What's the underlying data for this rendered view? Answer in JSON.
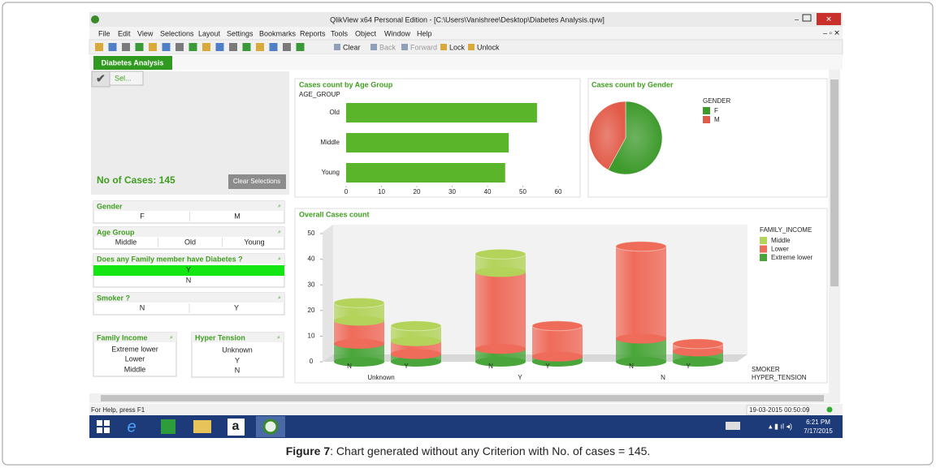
{
  "window": {
    "title": "QlikView x64 Personal Edition - [C:\\Users\\Vanishree\\Desktop\\Diabetes Analysis.qvw]"
  },
  "menu": [
    "File",
    "Edit",
    "View",
    "Selections",
    "Layout",
    "Settings",
    "Bookmarks",
    "Reports",
    "Tools",
    "Object",
    "Window",
    "Help"
  ],
  "toolbar": [
    "Clear",
    "Back",
    "Forward",
    "Lock",
    "Unlock"
  ],
  "tab": "Diabetes Analysis",
  "current_selections": "Sel...",
  "cases_label": "No of Cases: 145",
  "clear_button": "Clear Selections",
  "listboxes": [
    {
      "title": "Gender",
      "items": [
        "F",
        "M"
      ]
    },
    {
      "title": "Age Group",
      "items": [
        "Middle",
        "Old",
        "Young"
      ]
    },
    {
      "title": "Does any Family member have Diabetes ?",
      "items": [
        "Y",
        "N"
      ],
      "selected_item": 0
    },
    {
      "title": "Smoker ?",
      "items": [
        "N",
        "Y"
      ]
    },
    {
      "title": "Family Income",
      "items": [
        "Extreme lower",
        "Lower",
        "Middle"
      ]
    },
    {
      "title": "Hyper Tension",
      "items": [
        "Unknown",
        "Y",
        "N"
      ]
    }
  ],
  "age_chart": {
    "type": "bar",
    "orientation": "horizontal",
    "title": "Cases count by Age Group",
    "dimension_label": "AGE_GROUP",
    "categories": [
      "Old",
      "Middle",
      "Young"
    ],
    "values": [
      54,
      46,
      45
    ],
    "color": "#5ab52a",
    "xlim": [
      0,
      60
    ],
    "xticks": [
      0,
      10,
      20,
      30,
      40,
      50,
      60
    ]
  },
  "gender_chart": {
    "type": "pie",
    "title": "Cases count by Gender",
    "legend_title": "GENDER",
    "categories": [
      "F",
      "M"
    ],
    "values": [
      84,
      61
    ],
    "colors": [
      "#3d9a2b",
      "#e25a48"
    ]
  },
  "overall_chart": {
    "type": "bar",
    "stacked": true,
    "title": "Overall Cases count",
    "categories": [
      "N",
      "Y",
      "N",
      "Y",
      "N",
      "Y"
    ],
    "groups": [
      "Unknown",
      "Y",
      "N"
    ],
    "x_label": "SMOKER",
    "x_group_label": "HYPER_TENSION",
    "legend_title": "FAMILY_INCOME",
    "series": [
      {
        "name": "Extreme lower",
        "color": "#4aa63a",
        "values": [
          7,
          3,
          5,
          2,
          9,
          4
        ]
      },
      {
        "name": "Lower",
        "color": "#ef6b5a",
        "values": [
          9,
          5,
          30,
          12,
          36,
          3
        ]
      },
      {
        "name": "Middle",
        "color": "#b3d35a",
        "values": [
          7,
          6,
          7,
          0,
          0,
          0
        ]
      }
    ],
    "ylim": [
      0,
      50
    ],
    "yticks": [
      0,
      10,
      20,
      30,
      40,
      50
    ]
  },
  "status": {
    "help": "For Help, press F1",
    "timestamp": "19-03-2015 00:50:09"
  },
  "taskbar": {
    "time": "6:21 PM",
    "date": "7/17/2015"
  },
  "caption": {
    "label": "Figure 7",
    "text": ": Chart generated without any Criterion with No. of cases = 145."
  }
}
